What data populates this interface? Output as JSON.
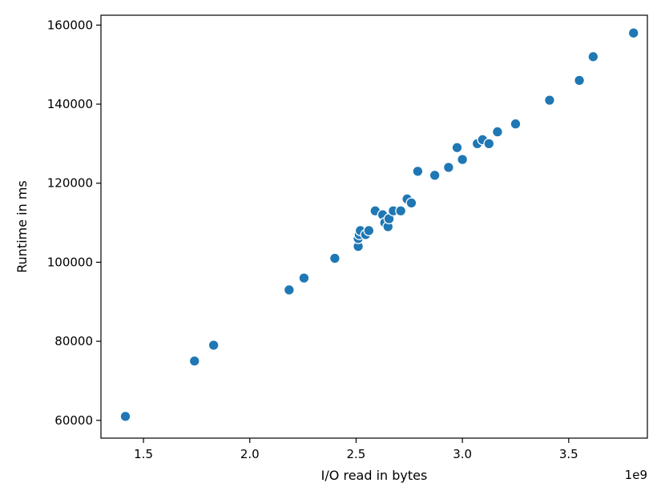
{
  "chart_data": {
    "type": "scatter",
    "title": "",
    "xlabel": "I/O read in bytes",
    "ylabel": "Runtime in ms",
    "x_offset_label": "1e9",
    "xlim": [
      1.3,
      3.87
    ],
    "ylim": [
      55500,
      162500
    ],
    "x_ticks": [
      1.5,
      2.0,
      2.5,
      3.0,
      3.5
    ],
    "x_tick_labels": [
      "1.5",
      "2.0",
      "2.5",
      "3.0",
      "3.5"
    ],
    "y_ticks": [
      60000,
      80000,
      100000,
      120000,
      140000,
      160000
    ],
    "y_tick_labels": [
      "60000",
      "80000",
      "100000",
      "120000",
      "140000",
      "160000"
    ],
    "grid": false,
    "colors": {
      "marker": "#1f77b4",
      "marker_edge": "#ffffff",
      "axes": "#000000"
    },
    "points": [
      {
        "x": 1.415,
        "y": 61000
      },
      {
        "x": 1.74,
        "y": 75000
      },
      {
        "x": 1.83,
        "y": 79000
      },
      {
        "x": 2.185,
        "y": 93000
      },
      {
        "x": 2.255,
        "y": 96000
      },
      {
        "x": 2.4,
        "y": 101000
      },
      {
        "x": 2.51,
        "y": 104000
      },
      {
        "x": 2.51,
        "y": 106000
      },
      {
        "x": 2.515,
        "y": 107000
      },
      {
        "x": 2.52,
        "y": 108000
      },
      {
        "x": 2.545,
        "y": 107000
      },
      {
        "x": 2.56,
        "y": 108000
      },
      {
        "x": 2.59,
        "y": 113000
      },
      {
        "x": 2.625,
        "y": 112000
      },
      {
        "x": 2.635,
        "y": 110000
      },
      {
        "x": 2.65,
        "y": 109000
      },
      {
        "x": 2.655,
        "y": 111000
      },
      {
        "x": 2.675,
        "y": 113000
      },
      {
        "x": 2.71,
        "y": 113000
      },
      {
        "x": 2.74,
        "y": 116000
      },
      {
        "x": 2.76,
        "y": 115000
      },
      {
        "x": 2.79,
        "y": 123000
      },
      {
        "x": 2.87,
        "y": 122000
      },
      {
        "x": 2.935,
        "y": 124000
      },
      {
        "x": 2.975,
        "y": 129000
      },
      {
        "x": 3.0,
        "y": 126000
      },
      {
        "x": 3.07,
        "y": 130000
      },
      {
        "x": 3.095,
        "y": 131000
      },
      {
        "x": 3.125,
        "y": 130000
      },
      {
        "x": 3.165,
        "y": 133000
      },
      {
        "x": 3.25,
        "y": 135000
      },
      {
        "x": 3.41,
        "y": 141000
      },
      {
        "x": 3.55,
        "y": 146000
      },
      {
        "x": 3.615,
        "y": 152000
      },
      {
        "x": 3.805,
        "y": 158000
      }
    ]
  }
}
